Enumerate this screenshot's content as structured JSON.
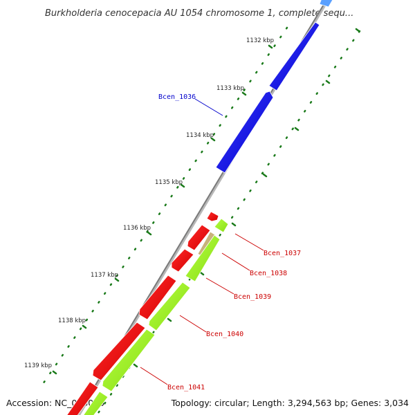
{
  "header": {
    "title": "Burkholderia cenocepacia AU 1054 chromosome 1, complete sequ..."
  },
  "footer": {
    "accession": "Accession: NC_008060",
    "summary": "Topology: circular; Length: 3,294,563 bp; Genes: 3,034"
  },
  "scale": {
    "ticks": [
      {
        "label": "1132 kbp"
      },
      {
        "label": "1133 kbp"
      },
      {
        "label": "1134 kbp"
      },
      {
        "label": "1135 kbp"
      },
      {
        "label": "1136 kbp"
      },
      {
        "label": "1137 kbp"
      },
      {
        "label": "1138 kbp"
      },
      {
        "label": "1139 kbp"
      }
    ]
  },
  "gene_labels": [
    {
      "name": "Bcen_1036",
      "color": "#0000cc"
    },
    {
      "name": "Bcen_1037",
      "color": "#cc0000"
    },
    {
      "name": "Bcen_1038",
      "color": "#cc0000"
    },
    {
      "name": "Bcen_1039",
      "color": "#cc0000"
    },
    {
      "name": "Bcen_1040",
      "color": "#cc0000"
    },
    {
      "name": "Bcen_1041",
      "color": "#cc0000"
    }
  ],
  "colors": {
    "backbone": "#8c8c8c",
    "forward_cds": "#0000ee",
    "reverse_cds_red": "#ee0000",
    "reverse_cds_green": "#99ee22",
    "other_feature": "#c8b27a",
    "tick_mark": "#1a7a1a",
    "label_line_blue": "#0000cc",
    "label_line_red": "#cc0000"
  }
}
